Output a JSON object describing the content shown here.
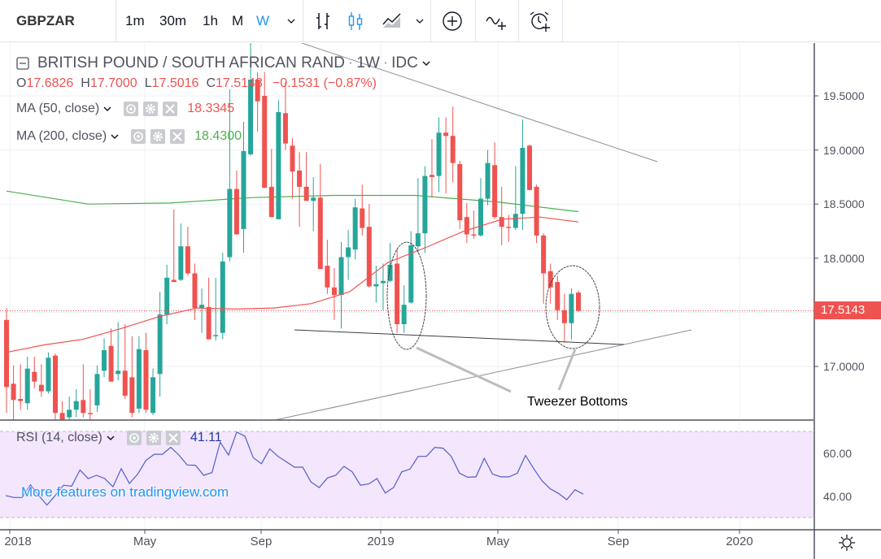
{
  "toolbar": {
    "symbol": "GBPZAR",
    "intervals": [
      "1m",
      "30m",
      "1h",
      "M",
      "W"
    ],
    "active_interval": "W",
    "icons": [
      "chevron-down-icon",
      "bar-chart-icon",
      "candles-icon",
      "area-chart-icon",
      "chevron-down-icon",
      "plus-circle-icon",
      "indicators-icon",
      "alarm-icon"
    ]
  },
  "legend": {
    "title": "BRITISH POUND / SOUTH AFRICAN RAND",
    "resolution": "1W",
    "source": "IDC",
    "dot": "·",
    "ohlc": {
      "o_label": "O",
      "o": "17.6826",
      "h_label": "H",
      "h": "17.7000",
      "l_label": "L",
      "l": "17.5016",
      "c_label": "C",
      "c": "17.5143",
      "change": "−0.1531 (−0.87%)"
    },
    "ma50": {
      "label": "MA (50, close)",
      "value": "18.3345",
      "color": "#ef5350"
    },
    "ma200": {
      "label": "MA (200, close)",
      "value": "18.4300",
      "color": "#4caf50"
    },
    "rsi": {
      "label": "RSI (14, close)",
      "value": "41.11",
      "color": "#5060c8"
    }
  },
  "price_axis": {
    "labels": [
      "19.5000",
      "19.0000",
      "18.5000",
      "18.0000",
      "17.0000"
    ],
    "current_price": "17.5143"
  },
  "rsi_axis": {
    "labels": [
      "60.00",
      "40.00"
    ]
  },
  "time_axis": {
    "labels": [
      "2018",
      "May",
      "Sep",
      "2019",
      "May",
      "Sep",
      "2020"
    ]
  },
  "annotation": "Tweezer Bottoms",
  "watermark": "More features on tradingview.com",
  "colors": {
    "up": "#26a69a",
    "down": "#ef5350",
    "accent": "#2196f3",
    "rsi_band": "#f3e6fd"
  },
  "chart_data": [
    {
      "type": "candlestick",
      "symbol": "GBPZAR",
      "timeframe": "1W",
      "ylim": [
        16.5,
        20.0
      ],
      "yticks": [
        17.0,
        17.5,
        18.0,
        18.5,
        19.0,
        19.5
      ],
      "x_ticks": [
        "2018",
        "May",
        "Sep",
        "2019",
        "May",
        "Sep",
        "2020"
      ],
      "grid": true,
      "candles_ohlc": [
        [
          17.43,
          17.54,
          16.57,
          16.81
        ],
        [
          16.84,
          17.01,
          16.49,
          16.69
        ],
        [
          16.7,
          17.02,
          16.6,
          16.68
        ],
        [
          16.66,
          17.09,
          16.6,
          16.98
        ],
        [
          16.95,
          17.09,
          16.8,
          16.86
        ],
        [
          16.83,
          17.02,
          16.72,
          16.77
        ],
        [
          16.77,
          17.13,
          16.75,
          17.08
        ],
        [
          17.1,
          17.12,
          16.49,
          16.57
        ],
        [
          16.57,
          16.68,
          16.45,
          16.51
        ],
        [
          16.53,
          16.72,
          16.45,
          16.6
        ],
        [
          16.6,
          16.79,
          16.53,
          16.68
        ],
        [
          16.69,
          17.02,
          16.53,
          16.57
        ],
        [
          16.57,
          16.79,
          16.49,
          16.56
        ],
        [
          16.64,
          17.01,
          16.58,
          16.93
        ],
        [
          16.96,
          17.26,
          16.9,
          17.15
        ],
        [
          17.19,
          17.35,
          16.86,
          16.86
        ],
        [
          16.93,
          17.41,
          16.87,
          16.96
        ],
        [
          16.96,
          17.39,
          16.7,
          16.73
        ],
        [
          16.9,
          17.28,
          16.53,
          16.57
        ],
        [
          16.61,
          17.28,
          16.57,
          17.16
        ],
        [
          17.15,
          17.31,
          16.57,
          16.6
        ],
        [
          16.57,
          16.98,
          16.55,
          16.9
        ],
        [
          16.93,
          17.69,
          16.72,
          17.48
        ],
        [
          17.48,
          17.94,
          17.39,
          17.82
        ],
        [
          17.8,
          18.45,
          17.78,
          17.78
        ],
        [
          17.8,
          18.32,
          17.79,
          18.11
        ],
        [
          18.11,
          18.29,
          17.84,
          17.86
        ],
        [
          17.86,
          17.95,
          17.43,
          17.54
        ],
        [
          17.54,
          17.72,
          17.31,
          17.57
        ],
        [
          17.55,
          17.82,
          17.25,
          17.25
        ],
        [
          17.28,
          17.82,
          17.24,
          17.29
        ],
        [
          17.31,
          18.05,
          17.25,
          17.97
        ],
        [
          18.01,
          19.56,
          17.97,
          18.64
        ],
        [
          18.64,
          18.81,
          18.22,
          18.22
        ],
        [
          18.27,
          19.26,
          18.05,
          18.99
        ],
        [
          18.96,
          19.99,
          18.95,
          19.65
        ],
        [
          19.65,
          19.72,
          19.17,
          19.45
        ],
        [
          19.5,
          19.72,
          18.65,
          18.65
        ],
        [
          18.66,
          19.01,
          18.38,
          18.38
        ],
        [
          18.36,
          19.46,
          18.36,
          19.35
        ],
        [
          19.34,
          19.63,
          19.0,
          19.06
        ],
        [
          19.04,
          19.11,
          18.55,
          18.8
        ],
        [
          18.81,
          18.98,
          18.29,
          18.66
        ],
        [
          18.66,
          18.98,
          18.53,
          18.53
        ],
        [
          18.53,
          18.75,
          18.25,
          18.56
        ],
        [
          18.56,
          18.87,
          17.9,
          17.9
        ],
        [
          17.93,
          18.17,
          17.67,
          17.73
        ],
        [
          17.73,
          17.91,
          17.43,
          17.66
        ],
        [
          17.66,
          18.15,
          17.35,
          18.01
        ],
        [
          18.01,
          18.26,
          17.8,
          18.1
        ],
        [
          18.08,
          18.55,
          17.99,
          18.47
        ],
        [
          18.46,
          18.68,
          18.21,
          18.28
        ],
        [
          18.29,
          18.5,
          17.73,
          17.74
        ],
        [
          17.74,
          17.93,
          17.59,
          17.76
        ],
        [
          17.77,
          17.95,
          17.52,
          17.79
        ],
        [
          17.79,
          18.14,
          17.78,
          17.94
        ],
        [
          17.95,
          18.08,
          17.31,
          17.39
        ],
        [
          17.39,
          17.75,
          17.31,
          17.57
        ],
        [
          17.59,
          18.25,
          17.58,
          18.12
        ],
        [
          18.11,
          18.74,
          18.05,
          18.23
        ],
        [
          18.23,
          18.85,
          18.05,
          18.76
        ],
        [
          18.77,
          19.1,
          18.56,
          18.75
        ],
        [
          18.76,
          19.3,
          18.61,
          19.16
        ],
        [
          19.16,
          19.3,
          18.6,
          19.13
        ],
        [
          19.13,
          19.4,
          18.7,
          18.88
        ],
        [
          18.87,
          18.9,
          18.27,
          18.35
        ],
        [
          18.38,
          18.51,
          18.14,
          18.22
        ],
        [
          18.22,
          18.44,
          18.18,
          18.21
        ],
        [
          18.21,
          18.74,
          18.2,
          18.55
        ],
        [
          18.55,
          19.0,
          18.49,
          18.88
        ],
        [
          18.86,
          19.07,
          18.36,
          18.38
        ],
        [
          18.38,
          18.66,
          18.12,
          18.29
        ],
        [
          18.29,
          18.4,
          18.15,
          18.28
        ],
        [
          18.28,
          18.85,
          18.26,
          18.41
        ],
        [
          18.41,
          19.28,
          18.26,
          19.02
        ],
        [
          19.04,
          19.05,
          18.63,
          18.63
        ],
        [
          18.66,
          18.68,
          18.14,
          18.21
        ],
        [
          18.21,
          18.23,
          17.58,
          17.86
        ],
        [
          17.88,
          17.95,
          17.58,
          17.73
        ],
        [
          17.78,
          17.84,
          17.43,
          17.52
        ],
        [
          17.52,
          17.67,
          17.22,
          17.4
        ],
        [
          17.4,
          17.72,
          17.25,
          17.67
        ],
        [
          17.6826,
          17.7,
          17.5016,
          17.5143
        ]
      ],
      "ma50": [
        17.13,
        17.2,
        17.25,
        17.35,
        17.46,
        17.54,
        17.53,
        17.54,
        17.58,
        17.69,
        17.96,
        18.1,
        18.25,
        18.36,
        18.38,
        18.3345
      ],
      "ma200": [
        18.62,
        18.5,
        18.51,
        18.56,
        18.58,
        18.58,
        18.52,
        18.43
      ],
      "last_price": 17.5143
    },
    {
      "type": "line",
      "name": "RSI (14, close)",
      "ylim": [
        25,
        75
      ],
      "yticks": [
        40,
        60
      ],
      "band": [
        30,
        70
      ],
      "values": [
        40.4,
        39.5,
        39.5,
        45.4,
        40.4,
        36.0,
        40.4,
        45.2,
        44.8,
        52.3,
        48.3,
        49.8,
        48.3,
        44.5,
        52.9,
        46.0,
        50.4,
        56.7,
        59.6,
        59.6,
        62.8,
        59.2,
        54.6,
        54.5,
        49.8,
        51.1,
        65.2,
        59.2,
        69.9,
        68.0,
        58.0,
        55.2,
        62.1,
        58.6,
        56.1,
        53.6,
        53.6,
        46.7,
        44.1,
        48.6,
        49.8,
        54.0,
        51.4,
        45.2,
        45.8,
        48.3,
        41.6,
        44.1,
        51.4,
        52.7,
        58.6,
        58.6,
        62.8,
        62.4,
        58.6,
        50.8,
        48.9,
        49.1,
        57.7,
        50.4,
        49.1,
        49.1,
        50.8,
        59.0,
        52.9,
        47.3,
        43.5,
        41.4,
        38.5,
        43.1,
        41.11
      ]
    }
  ]
}
